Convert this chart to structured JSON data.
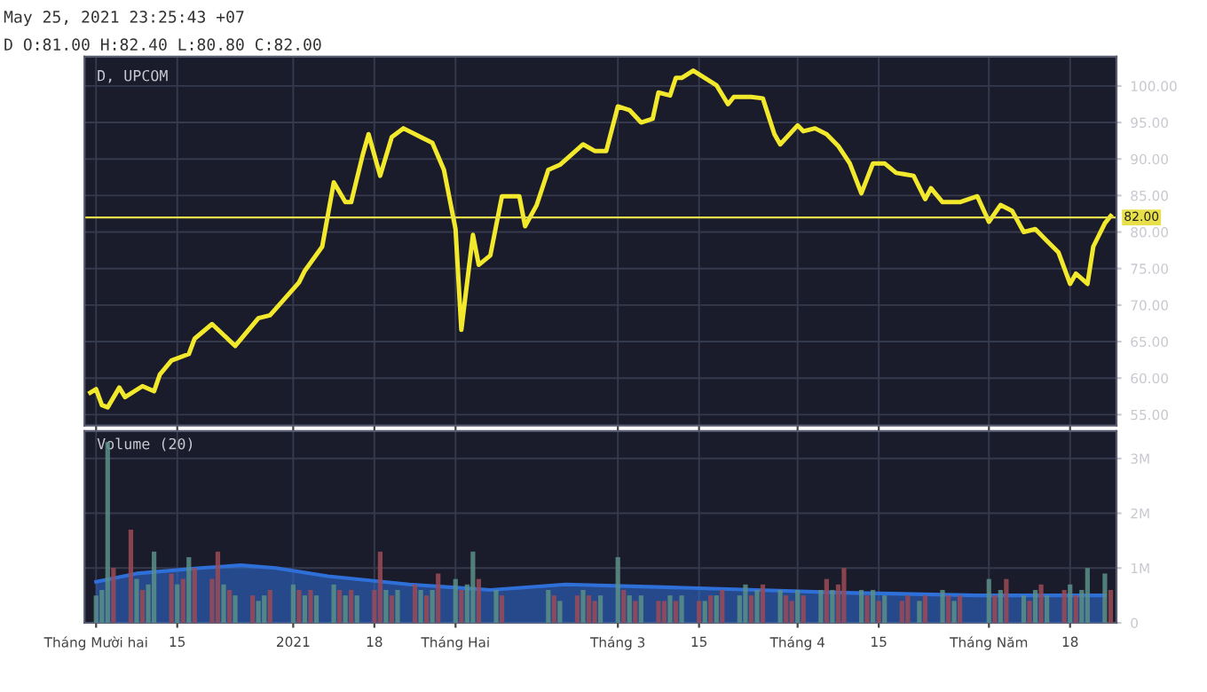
{
  "chart_data": [
    {
      "type": "line",
      "title": "D, UPCOM",
      "annotations": [
        "May 25, 2021 23:25:43 +07",
        "D O:81.00 H:82.40 L:80.80 C:82.00"
      ],
      "series": [
        {
          "color": "#f2e82c",
          "x": [
            "2020-11-30",
            "2020-12-01",
            "2020-12-02",
            "2020-12-03",
            "2020-12-05",
            "2020-12-06",
            "2020-12-09",
            "2020-12-11",
            "2020-12-12",
            "2020-12-14",
            "2020-12-17",
            "2020-12-18",
            "2020-12-21",
            "2020-12-25",
            "2020-12-29",
            "2020-12-31",
            "2021-01-05",
            "2021-01-06",
            "2021-01-09",
            "2021-01-11",
            "2021-01-13",
            "2021-01-14",
            "2021-01-16",
            "2021-01-17",
            "2021-01-19",
            "2021-01-21",
            "2021-01-23",
            "2021-01-26",
            "2021-01-28",
            "2021-01-30",
            "2021-02-01",
            "2021-02-02",
            "2021-02-04",
            "2021-02-05",
            "2021-02-07",
            "2021-02-09",
            "2021-02-12",
            "2021-02-13",
            "2021-02-15",
            "2021-02-17",
            "2021-02-19",
            "2021-02-23",
            "2021-02-25",
            "2021-02-27",
            "2021-03-01",
            "2021-03-03",
            "2021-03-05",
            "2021-03-07",
            "2021-03-08",
            "2021-03-10",
            "2021-03-11",
            "2021-03-12",
            "2021-03-14",
            "2021-03-16",
            "2021-03-18",
            "2021-03-20",
            "2021-03-21",
            "2021-03-24",
            "2021-03-26",
            "2021-03-28",
            "2021-03-29",
            "2021-04-01",
            "2021-04-02",
            "2021-04-04",
            "2021-04-06",
            "2021-04-08",
            "2021-04-10",
            "2021-04-12",
            "2021-04-14",
            "2021-04-16",
            "2021-04-18",
            "2021-04-21",
            "2021-04-23",
            "2021-04-24",
            "2021-04-26",
            "2021-04-29",
            "2021-05-02",
            "2021-05-04",
            "2021-05-06",
            "2021-05-08",
            "2021-05-10",
            "2021-05-12",
            "2021-05-14",
            "2021-05-16",
            "2021-05-18",
            "2021-05-19",
            "2021-05-21",
            "2021-05-22",
            "2021-05-24",
            "2021-05-25"
          ],
          "values": [
            58.0,
            58.5,
            56.3,
            56.0,
            58.7,
            57.4,
            58.9,
            58.2,
            60.5,
            62.4,
            63.3,
            65.4,
            67.4,
            64.4,
            68.2,
            68.6,
            73.1,
            74.7,
            78.0,
            86.8,
            84.1,
            84.1,
            90.6,
            93.4,
            87.7,
            93.0,
            94.2,
            93.0,
            92.2,
            88.5,
            80.4,
            66.6,
            79.6,
            75.5,
            76.8,
            84.9,
            84.9,
            80.8,
            83.7,
            88.5,
            89.2,
            92.0,
            91.1,
            91.1,
            97.2,
            96.7,
            95.0,
            95.5,
            99.1,
            98.7,
            101.1,
            101.1,
            102.1,
            101.1,
            100.1,
            97.5,
            98.5,
            98.5,
            98.3,
            93.4,
            92.0,
            94.6,
            93.8,
            94.2,
            93.4,
            91.8,
            89.4,
            85.3,
            89.4,
            89.4,
            88.1,
            87.7,
            84.5,
            86.0,
            84.1,
            84.1,
            84.9,
            81.4,
            83.7,
            82.9,
            80.0,
            80.4,
            78.8,
            77.2,
            72.9,
            74.3,
            72.9,
            78.0,
            81.2,
            82.2
          ]
        }
      ],
      "xlim": [
        "2020-11-29",
        "2021-05-26"
      ],
      "xticks": [
        {
          "value": "2020-12-01",
          "label": null
        },
        {
          "value": "2020-12-15",
          "label": null
        },
        {
          "value": "2021-01-04",
          "label": null
        },
        {
          "value": "2021-01-18",
          "label": null
        },
        {
          "value": "2021-02-01",
          "label": null
        },
        {
          "value": "2021-03-01",
          "label": null
        },
        {
          "value": "2021-03-15",
          "label": null
        },
        {
          "value": "2021-04-01",
          "label": null
        },
        {
          "value": "2021-04-15",
          "label": null
        },
        {
          "value": "2021-05-04",
          "label": null
        },
        {
          "value": "2021-05-18",
          "label": null
        }
      ],
      "ylim": [
        53.5,
        104
      ],
      "yticks": [
        {
          "value": 55,
          "label": "55.00"
        },
        {
          "value": 60,
          "label": "60.00"
        },
        {
          "value": 65,
          "label": "65.00"
        },
        {
          "value": 70,
          "label": "70.00"
        },
        {
          "value": 75,
          "label": "75.00"
        },
        {
          "value": 80,
          "label": "80.00"
        },
        {
          "value": 85,
          "label": "85.00"
        },
        {
          "value": 90,
          "label": "90.00"
        },
        {
          "value": 95,
          "label": "95.00"
        },
        {
          "value": 100,
          "label": "100.00"
        }
      ],
      "ref_lines": [
        {
          "axis": "y",
          "value": 82,
          "label": "82.00",
          "color": "#e8e04a"
        }
      ],
      "grid": true,
      "tick_labels": "y"
    },
    {
      "type": "bar",
      "title": "Volume (20)",
      "series": [
        {
          "type": "bar",
          "x": [
            "2020-12-01",
            "2020-12-02",
            "2020-12-03",
            "2020-12-04",
            "2020-12-07",
            "2020-12-08",
            "2020-12-09",
            "2020-12-10",
            "2020-12-11",
            "2020-12-14",
            "2020-12-15",
            "2020-12-16",
            "2020-12-17",
            "2020-12-18",
            "2020-12-21",
            "2020-12-22",
            "2020-12-23",
            "2020-12-24",
            "2020-12-25",
            "2020-12-28",
            "2020-12-29",
            "2020-12-30",
            "2020-12-31",
            "2021-01-04",
            "2021-01-05",
            "2021-01-06",
            "2021-01-07",
            "2021-01-08",
            "2021-01-11",
            "2021-01-12",
            "2021-01-13",
            "2021-01-14",
            "2021-01-15",
            "2021-01-18",
            "2021-01-19",
            "2021-01-20",
            "2021-01-21",
            "2021-01-22",
            "2021-01-25",
            "2021-01-26",
            "2021-01-27",
            "2021-01-28",
            "2021-01-29",
            "2021-02-01",
            "2021-02-02",
            "2021-02-03",
            "2021-02-04",
            "2021-02-05",
            "2021-02-08",
            "2021-02-09",
            "2021-02-17",
            "2021-02-18",
            "2021-02-19",
            "2021-02-22",
            "2021-02-23",
            "2021-02-24",
            "2021-02-25",
            "2021-02-26",
            "2021-03-01",
            "2021-03-02",
            "2021-03-03",
            "2021-03-04",
            "2021-03-05",
            "2021-03-08",
            "2021-03-09",
            "2021-03-10",
            "2021-03-11",
            "2021-03-12",
            "2021-03-15",
            "2021-03-16",
            "2021-03-17",
            "2021-03-18",
            "2021-03-19",
            "2021-03-22",
            "2021-03-23",
            "2021-03-24",
            "2021-03-25",
            "2021-03-26",
            "2021-03-29",
            "2021-03-30",
            "2021-03-31",
            "2021-04-01",
            "2021-04-02",
            "2021-04-05",
            "2021-04-06",
            "2021-04-07",
            "2021-04-08",
            "2021-04-09",
            "2021-04-12",
            "2021-04-13",
            "2021-04-14",
            "2021-04-15",
            "2021-04-16",
            "2021-04-19",
            "2021-04-20",
            "2021-04-22",
            "2021-04-23",
            "2021-04-26",
            "2021-04-27",
            "2021-04-28",
            "2021-04-29",
            "2021-05-04",
            "2021-05-05",
            "2021-05-06",
            "2021-05-07",
            "2021-05-10",
            "2021-05-11",
            "2021-05-12",
            "2021-05-13",
            "2021-05-14",
            "2021-05-17",
            "2021-05-18",
            "2021-05-19",
            "2021-05-20",
            "2021-05-21",
            "2021-05-24",
            "2021-05-25"
          ],
          "values": [
            0.5,
            0.6,
            3.3,
            1.0,
            1.7,
            0.8,
            0.6,
            0.7,
            1.3,
            0.9,
            0.7,
            0.8,
            1.2,
            1.0,
            0.8,
            1.3,
            0.7,
            0.6,
            0.5,
            0.5,
            0.4,
            0.5,
            0.6,
            0.7,
            0.6,
            0.5,
            0.6,
            0.5,
            0.7,
            0.6,
            0.5,
            0.6,
            0.5,
            0.6,
            1.3,
            0.6,
            0.5,
            0.6,
            0.7,
            0.6,
            0.5,
            0.6,
            0.9,
            0.8,
            0.6,
            0.7,
            1.3,
            0.8,
            0.6,
            0.5,
            0.6,
            0.5,
            0.4,
            0.5,
            0.6,
            0.5,
            0.4,
            0.5,
            1.2,
            0.6,
            0.5,
            0.4,
            0.5,
            0.4,
            0.4,
            0.5,
            0.4,
            0.5,
            0.4,
            0.4,
            0.5,
            0.5,
            0.6,
            0.5,
            0.7,
            0.5,
            0.6,
            0.7,
            0.6,
            0.5,
            0.4,
            0.6,
            0.5,
            0.6,
            0.8,
            0.6,
            0.7,
            1.0,
            0.6,
            0.5,
            0.6,
            0.4,
            0.5,
            0.4,
            0.5,
            0.4,
            0.5,
            0.6,
            0.5,
            0.4,
            0.5,
            0.8,
            0.5,
            0.6,
            0.8,
            0.5,
            0.4,
            0.6,
            0.7,
            0.5,
            0.6,
            0.7,
            0.5,
            0.6,
            1.0,
            0.9,
            0.6
          ],
          "colors": [
            "#5b8f87",
            "#5b8f87",
            "#5b8f87",
            "#9b4a55",
            "#9b4a55",
            "#5b8f87",
            "#9b4a55",
            "#5b8f87",
            "#5b8f87",
            "#9b4a55",
            "#5b8f87",
            "#9b4a55",
            "#5b8f87",
            "#9b4a55",
            "#9b4a55",
            "#9b4a55",
            "#5b8f87",
            "#9b4a55",
            "#5b8f87",
            "#9b4a55",
            "#5b8f87",
            "#5b8f87",
            "#9b4a55",
            "#5b8f87",
            "#9b4a55",
            "#5b8f87",
            "#9b4a55",
            "#5b8f87",
            "#5b8f87",
            "#9b4a55",
            "#5b8f87",
            "#9b4a55",
            "#5b8f87",
            "#9b4a55",
            "#9b4a55",
            "#5b8f87",
            "#9b4a55",
            "#5b8f87",
            "#9b4a55",
            "#5b8f87",
            "#9b4a55",
            "#5b8f87",
            "#9b4a55",
            "#5b8f87",
            "#9b4a55",
            "#5b8f87",
            "#5b8f87",
            "#9b4a55",
            "#5b8f87",
            "#9b4a55",
            "#5b8f87",
            "#9b4a55",
            "#5b8f87",
            "#9b4a55",
            "#5b8f87",
            "#9b4a55",
            "#9b4a55",
            "#5b8f87",
            "#5b8f87",
            "#9b4a55",
            "#5b8f87",
            "#9b4a55",
            "#5b8f87",
            "#9b4a55",
            "#9b4a55",
            "#5b8f87",
            "#9b4a55",
            "#5b8f87",
            "#9b4a55",
            "#5b8f87",
            "#9b4a55",
            "#5b8f87",
            "#9b4a55",
            "#5b8f87",
            "#5b8f87",
            "#9b4a55",
            "#5b8f87",
            "#9b4a55",
            "#5b8f87",
            "#9b4a55",
            "#9b4a55",
            "#5b8f87",
            "#9b4a55",
            "#5b8f87",
            "#9b4a55",
            "#5b8f87",
            "#9b4a55",
            "#9b4a55",
            "#5b8f87",
            "#9b4a55",
            "#5b8f87",
            "#9b4a55",
            "#5b8f87",
            "#9b4a55",
            "#9b4a55",
            "#5b8f87",
            "#9b4a55",
            "#5b8f87",
            "#9b4a55",
            "#5b8f87",
            "#9b4a55",
            "#5b8f87",
            "#9b4a55",
            "#5b8f87",
            "#9b4a55",
            "#5b8f87",
            "#9b4a55",
            "#5b8f87",
            "#9b4a55",
            "#5b8f87",
            "#9b4a55",
            "#5b8f87",
            "#9b4a55",
            "#5b8f87",
            "#5b8f87",
            "#5b8f87",
            "#9b4a55"
          ]
        },
        {
          "type": "area",
          "color": "#2f6fd8",
          "x": [
            "2020-12-01",
            "2020-12-08",
            "2020-12-19",
            "2020-12-26",
            "2021-01-01",
            "2021-01-10",
            "2021-01-24",
            "2021-02-07",
            "2021-02-20",
            "2021-03-09",
            "2021-03-25",
            "2021-04-09",
            "2021-05-02",
            "2021-05-24"
          ],
          "values": [
            0.75,
            0.9,
            1.0,
            1.05,
            1.0,
            0.85,
            0.7,
            0.6,
            0.7,
            0.65,
            0.6,
            0.55,
            0.5,
            0.5
          ]
        }
      ],
      "xlim": [
        "2020-11-29",
        "2021-05-26"
      ],
      "xticks": [
        {
          "value": "2020-12-01",
          "label": "Tháng Mười hai"
        },
        {
          "value": "2020-12-15",
          "label": "15"
        },
        {
          "value": "2021-01-04",
          "label": "2021"
        },
        {
          "value": "2021-01-18",
          "label": "18"
        },
        {
          "value": "2021-02-01",
          "label": "Tháng Hai"
        },
        {
          "value": "2021-03-01",
          "label": "Tháng 3"
        },
        {
          "value": "2021-03-15",
          "label": "15"
        },
        {
          "value": "2021-04-01",
          "label": "Tháng 4"
        },
        {
          "value": "2021-04-15",
          "label": "15"
        },
        {
          "value": "2021-05-04",
          "label": "Tháng Năm"
        },
        {
          "value": "2021-05-18",
          "label": "18"
        }
      ],
      "ylim": [
        0,
        3.5
      ],
      "yticks": [
        {
          "value": 0,
          "label": "0"
        },
        {
          "value": 1,
          "label": "1M"
        },
        {
          "value": 2,
          "label": "2M"
        },
        {
          "value": 3,
          "label": "3M"
        }
      ],
      "grid": true
    }
  ]
}
